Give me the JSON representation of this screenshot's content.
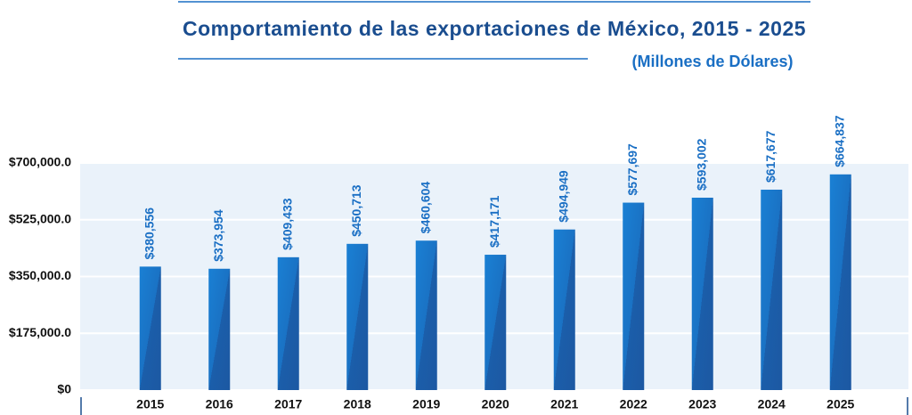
{
  "chart_data": {
    "type": "bar",
    "title": "Comportamiento de las exportaciones de México, 2015 - 2025",
    "subtitle": "(Millones de Dólares)",
    "categories": [
      "2015",
      "2016",
      "2017",
      "2018",
      "2019",
      "2020",
      "2021",
      "2022",
      "2023",
      "2024",
      "2025"
    ],
    "values": [
      380556,
      373954,
      409433,
      450713,
      460604,
      417171,
      494949,
      577697,
      593002,
      617677,
      664837
    ],
    "value_labels": [
      "$380,556",
      "$373,954",
      "$409,433",
      "$450,713",
      "$460,604",
      "$417,171",
      "$494,949",
      "$577,697",
      "$593,002",
      "$617,677",
      "$664,837"
    ],
    "color": "#1a72c4",
    "ylim": [
      0,
      700000
    ],
    "yticks": [
      {
        "value": 0,
        "label": "$0"
      },
      {
        "value": 175000,
        "label": "$175,000.0"
      },
      {
        "value": 350000,
        "label": "$350,000.0"
      },
      {
        "value": 525000,
        "label": "$525,000.0"
      },
      {
        "value": 700000,
        "label": "$700,000.0"
      }
    ],
    "grid": true
  }
}
